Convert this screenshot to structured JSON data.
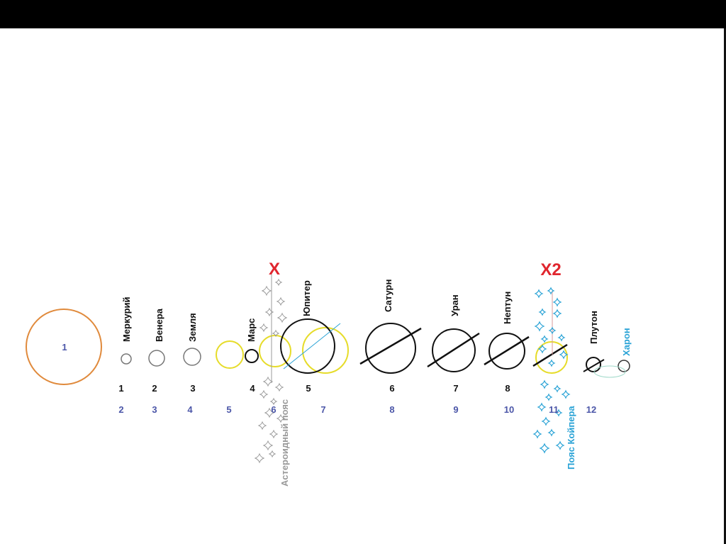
{
  "sun": {
    "number": "1",
    "color": "#e08a3c"
  },
  "planets": [
    {
      "name": "Меркурий",
      "number": "1"
    },
    {
      "name": "Венера",
      "number": "2"
    },
    {
      "name": "Земля",
      "number": "3"
    },
    {
      "name": "Марс",
      "number": "4"
    },
    {
      "name": "Юпитер",
      "number": "5"
    },
    {
      "name": "Сатурн",
      "number": "6"
    },
    {
      "name": "Уран",
      "number": "7"
    },
    {
      "name": "Нептун",
      "number": "8"
    }
  ],
  "pluto": {
    "name": "Плутон"
  },
  "charon": {
    "name": "Харон",
    "color": "#2aa3d6"
  },
  "hypothetical": [
    {
      "label": "X",
      "color": "#e0262e"
    },
    {
      "label": "X2",
      "color": "#e0262e"
    }
  ],
  "belts": {
    "asteroid": {
      "name": "Астероидный пояс",
      "color": "#9a9a9a"
    },
    "kuiper": {
      "name": "Пояс Койпера",
      "color": "#2aa3d6"
    }
  },
  "new_numbers": {
    "values": [
      "2",
      "3",
      "4",
      "5",
      "6",
      "7",
      "8",
      "9",
      "10",
      "11",
      "12"
    ],
    "color": "#4b56a8"
  },
  "colors": {
    "yellow_orbit": "#e6dc2a",
    "outline": "#111111"
  }
}
